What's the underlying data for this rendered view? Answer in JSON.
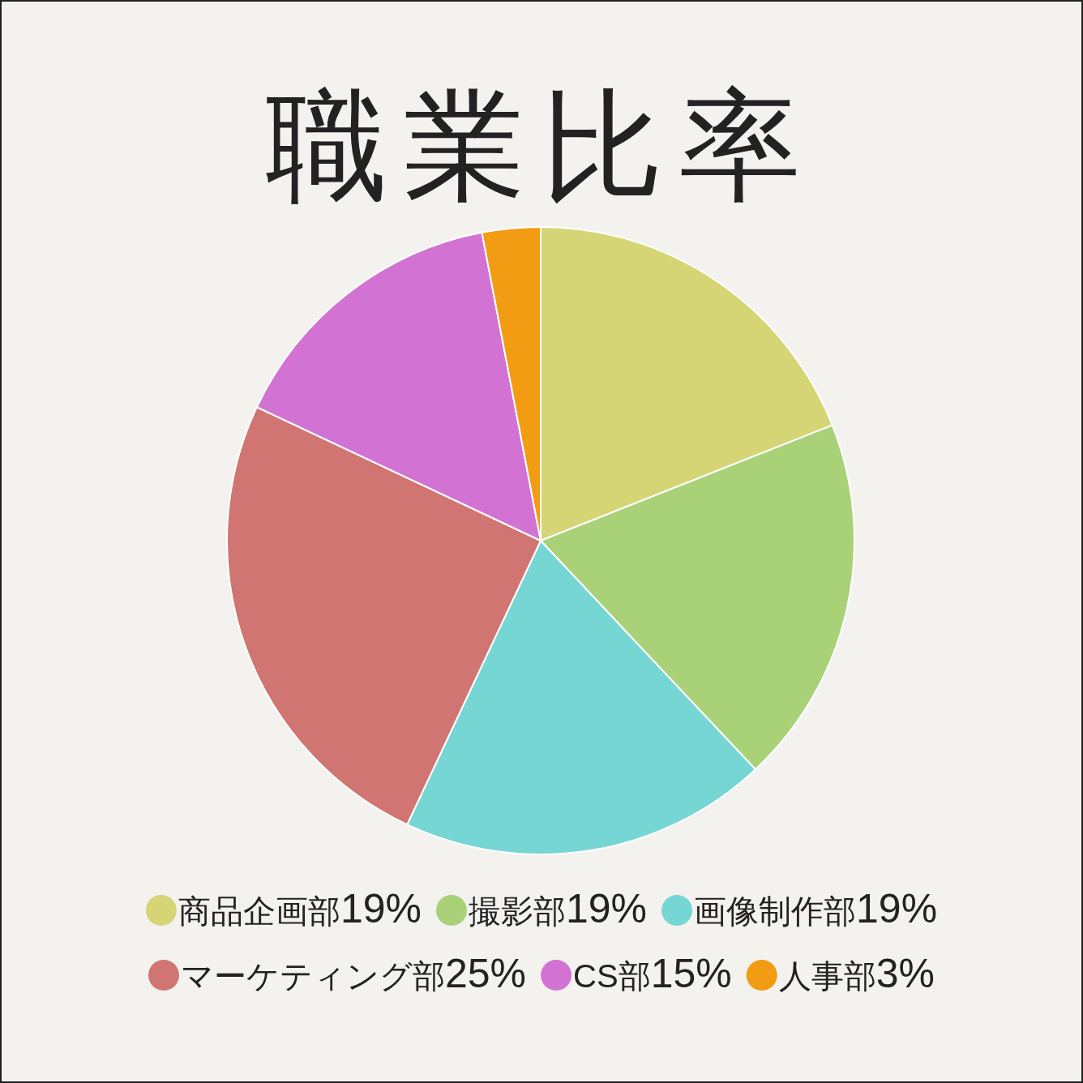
{
  "chart_data": {
    "type": "pie",
    "title": "職業比率",
    "categories": [
      "商品企画部",
      "撮影部",
      "画像制作部",
      "マーケティング部",
      "CS部",
      "人事部"
    ],
    "values": [
      19,
      19,
      19,
      25,
      15,
      3
    ],
    "value_labels": [
      "19%",
      "19%",
      "19%",
      "25%",
      "15%",
      "3%"
    ],
    "colors": [
      "#d5d576",
      "#a8d178",
      "#76d6d4",
      "#d07571",
      "#d273d4",
      "#f29c13"
    ],
    "legend": "bottom"
  }
}
